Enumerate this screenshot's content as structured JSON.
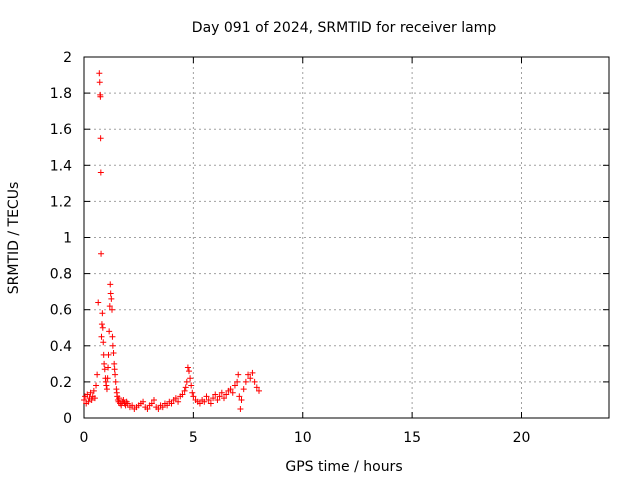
{
  "chart_data": {
    "type": "scatter",
    "title": "Day 091 of 2024, SRMTID for receiver lamp",
    "xlabel": "GPS time / hours",
    "ylabel": "SRMTID / TECUs",
    "xlim": [
      0,
      24
    ],
    "ylim": [
      0,
      2
    ],
    "x_ticks": [
      0,
      5,
      10,
      15,
      20
    ],
    "x_tick_labels": [
      "0",
      "5",
      "10",
      "15",
      "20"
    ],
    "y_ticks": [
      0,
      0.2,
      0.4,
      0.6,
      0.8,
      1,
      1.2,
      1.4,
      1.6,
      1.8,
      2
    ],
    "y_tick_labels": [
      "0",
      "0.2",
      "0.4",
      "0.6",
      "0.8",
      "1",
      "1.2",
      "1.4",
      "1.6",
      "1.8",
      "2"
    ],
    "grid": true,
    "marker": "plus",
    "color": "#ff0000",
    "series": [
      {
        "x": [
          0.0,
          0.05,
          0.1,
          0.15,
          0.2,
          0.25,
          0.3,
          0.35,
          0.4,
          0.45,
          0.5,
          0.55,
          0.6,
          0.65,
          0.7,
          0.72,
          0.74,
          0.75,
          0.76,
          0.77,
          0.78,
          0.8,
          0.82,
          0.84,
          0.86,
          0.88,
          0.9,
          0.92,
          0.95,
          0.98,
          1.0,
          1.02,
          1.05,
          1.08,
          1.1,
          1.12,
          1.15,
          1.18,
          1.2,
          1.22,
          1.25,
          1.28,
          1.3,
          1.32,
          1.35,
          1.38,
          1.4,
          1.42,
          1.45,
          1.48,
          1.5,
          1.52,
          1.55,
          1.58,
          1.6,
          1.65,
          1.7,
          1.75,
          1.8,
          1.85,
          1.9,
          1.95,
          2.0,
          2.1,
          2.2,
          2.3,
          2.4,
          2.5,
          2.6,
          2.7,
          2.8,
          2.9,
          3.0,
          3.1,
          3.2,
          3.3,
          3.4,
          3.5,
          3.6,
          3.7,
          3.8,
          3.9,
          4.0,
          4.1,
          4.2,
          4.3,
          4.4,
          4.5,
          4.6,
          4.65,
          4.7,
          4.75,
          4.8,
          4.85,
          4.9,
          4.95,
          5.0,
          5.1,
          5.2,
          5.3,
          5.4,
          5.5,
          5.6,
          5.7,
          5.8,
          5.9,
          6.0,
          6.1,
          6.2,
          6.3,
          6.4,
          6.5,
          6.6,
          6.7,
          6.8,
          6.9,
          7.0,
          7.05,
          7.1,
          7.15,
          7.2,
          7.3,
          7.4,
          7.5,
          7.6,
          7.7,
          7.8,
          7.9,
          8.0
        ],
        "y": [
          0.1,
          0.12,
          0.08,
          0.13,
          0.09,
          0.11,
          0.14,
          0.1,
          0.12,
          0.15,
          0.11,
          0.18,
          0.24,
          0.64,
          1.91,
          1.86,
          1.79,
          1.78,
          1.55,
          1.36,
          0.91,
          0.45,
          0.52,
          0.58,
          0.5,
          0.42,
          0.35,
          0.3,
          0.27,
          0.22,
          0.2,
          0.18,
          0.16,
          0.22,
          0.28,
          0.35,
          0.48,
          0.62,
          0.74,
          0.69,
          0.66,
          0.6,
          0.45,
          0.4,
          0.36,
          0.3,
          0.27,
          0.24,
          0.2,
          0.16,
          0.14,
          0.12,
          0.1,
          0.09,
          0.11,
          0.08,
          0.07,
          0.09,
          0.1,
          0.08,
          0.07,
          0.09,
          0.08,
          0.06,
          0.07,
          0.05,
          0.06,
          0.07,
          0.08,
          0.09,
          0.06,
          0.05,
          0.07,
          0.08,
          0.1,
          0.06,
          0.05,
          0.07,
          0.06,
          0.08,
          0.07,
          0.09,
          0.08,
          0.1,
          0.11,
          0.09,
          0.12,
          0.13,
          0.15,
          0.17,
          0.2,
          0.28,
          0.26,
          0.22,
          0.18,
          0.14,
          0.12,
          0.1,
          0.09,
          0.08,
          0.1,
          0.09,
          0.12,
          0.1,
          0.08,
          0.11,
          0.13,
          0.1,
          0.12,
          0.14,
          0.11,
          0.13,
          0.15,
          0.16,
          0.14,
          0.18,
          0.2,
          0.24,
          0.12,
          0.05,
          0.1,
          0.16,
          0.2,
          0.24,
          0.22,
          0.25,
          0.2,
          0.17,
          0.15
        ]
      }
    ]
  }
}
